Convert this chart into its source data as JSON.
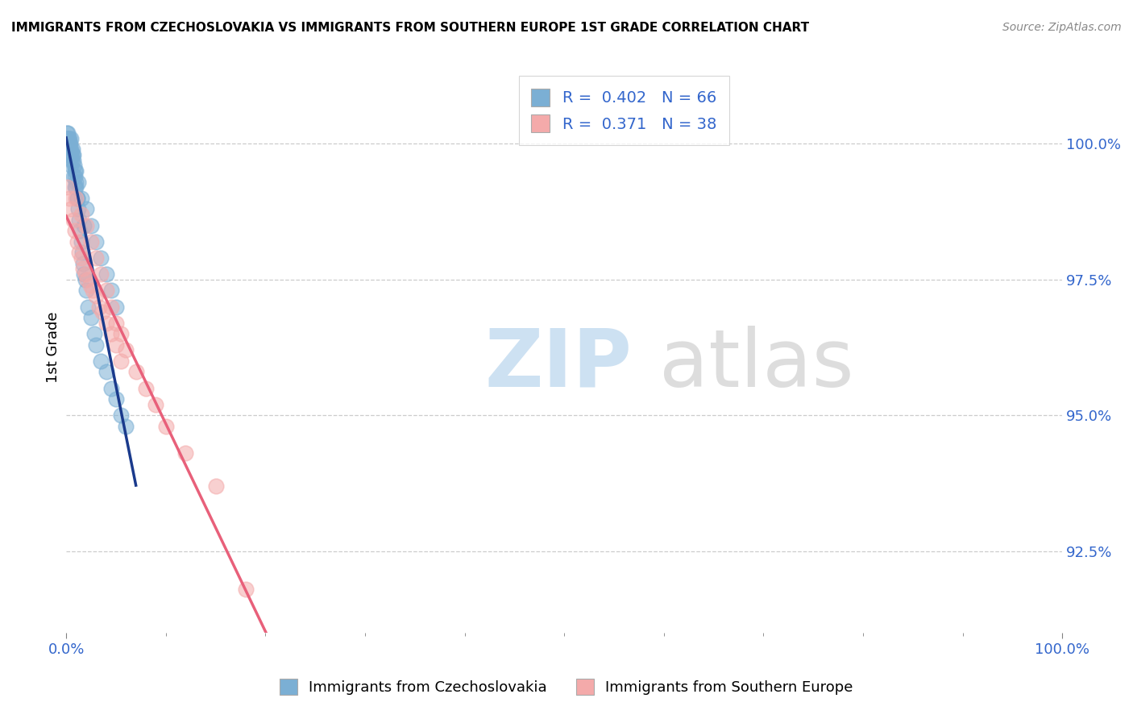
{
  "title": "IMMIGRANTS FROM CZECHOSLOVAKIA VS IMMIGRANTS FROM SOUTHERN EUROPE 1ST GRADE CORRELATION CHART",
  "source": "Source: ZipAtlas.com",
  "ylabel": "1st Grade",
  "xlim": [
    0,
    100
  ],
  "ylim": [
    91.0,
    101.5
  ],
  "legend_R1": "0.402",
  "legend_N1": "66",
  "legend_R2": "0.371",
  "legend_N2": "38",
  "blue_color": "#7BAFD4",
  "pink_color": "#F4AAAA",
  "blue_line_color": "#1A3A8C",
  "pink_line_color": "#E8607A",
  "blue_x": [
    0.05,
    0.08,
    0.1,
    0.12,
    0.14,
    0.16,
    0.18,
    0.2,
    0.22,
    0.25,
    0.28,
    0.3,
    0.32,
    0.35,
    0.38,
    0.4,
    0.42,
    0.45,
    0.48,
    0.5,
    0.55,
    0.6,
    0.65,
    0.7,
    0.75,
    0.8,
    0.85,
    0.9,
    0.95,
    1.0,
    1.1,
    1.2,
    1.3,
    1.4,
    1.5,
    1.6,
    1.7,
    1.8,
    1.9,
    2.0,
    2.2,
    2.5,
    2.8,
    3.0,
    3.5,
    4.0,
    4.5,
    5.0,
    5.5,
    6.0,
    1.0,
    1.2,
    1.5,
    2.0,
    2.5,
    3.0,
    3.5,
    4.0,
    4.5,
    5.0,
    0.3,
    0.5,
    0.7,
    0.9,
    1.1,
    1.8
  ],
  "blue_y": [
    100.1,
    100.0,
    100.2,
    100.1,
    100.0,
    100.1,
    100.2,
    99.9,
    100.0,
    100.1,
    100.0,
    99.9,
    100.1,
    100.0,
    99.8,
    99.9,
    100.0,
    100.1,
    99.9,
    99.8,
    99.7,
    99.8,
    99.9,
    99.8,
    99.7,
    99.6,
    99.5,
    99.4,
    99.3,
    99.2,
    99.0,
    98.8,
    98.6,
    98.4,
    98.2,
    98.0,
    97.8,
    97.6,
    97.5,
    97.3,
    97.0,
    96.8,
    96.5,
    96.3,
    96.0,
    95.8,
    95.5,
    95.3,
    95.0,
    94.8,
    99.5,
    99.3,
    99.0,
    98.8,
    98.5,
    98.2,
    97.9,
    97.6,
    97.3,
    97.0,
    99.8,
    99.6,
    99.4,
    99.2,
    99.0,
    98.5
  ],
  "pink_x": [
    0.1,
    0.3,
    0.5,
    0.7,
    0.9,
    1.1,
    1.3,
    1.5,
    1.7,
    1.9,
    2.1,
    2.4,
    2.7,
    3.0,
    3.3,
    3.6,
    4.0,
    4.5,
    5.0,
    5.5,
    1.0,
    1.5,
    2.0,
    2.5,
    3.0,
    3.5,
    4.0,
    4.5,
    5.0,
    5.5,
    6.0,
    7.0,
    8.0,
    9.0,
    10.0,
    12.0,
    15.0,
    18.0
  ],
  "pink_y": [
    99.2,
    99.0,
    98.8,
    98.6,
    98.4,
    98.2,
    98.0,
    97.9,
    97.7,
    97.6,
    97.5,
    97.4,
    97.3,
    97.2,
    97.0,
    96.9,
    96.7,
    96.5,
    96.3,
    96.0,
    99.0,
    98.7,
    98.5,
    98.2,
    97.9,
    97.6,
    97.3,
    97.0,
    96.7,
    96.5,
    96.2,
    95.8,
    95.5,
    95.2,
    94.8,
    94.3,
    93.7,
    91.8
  ]
}
